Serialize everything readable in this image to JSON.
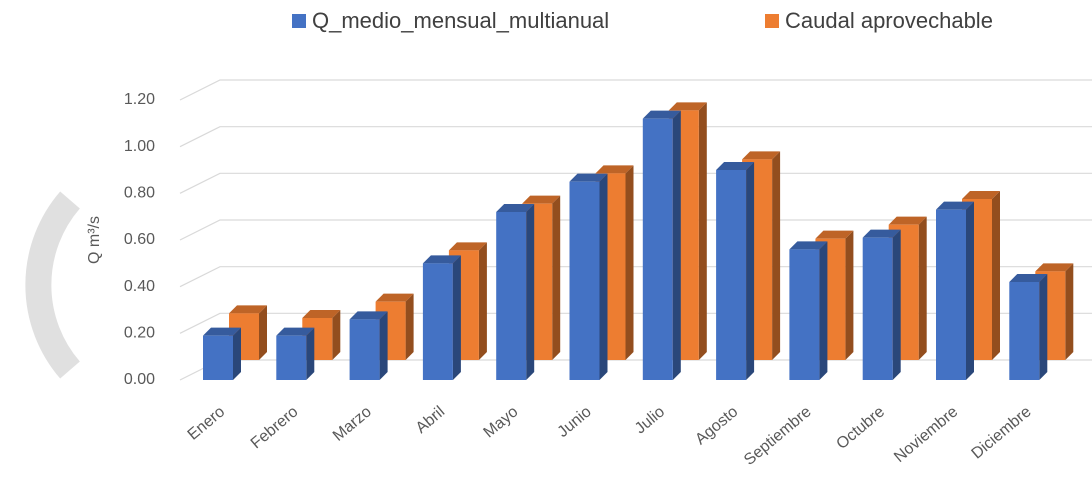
{
  "chart_data": {
    "type": "bar3d",
    "y_label": "Q m³/s",
    "categories": [
      "Enero",
      "Febrero",
      "Marzo",
      "Abril",
      "Mayo",
      "Junio",
      "Julio",
      "Agosto",
      "Septiembre",
      "Octubre",
      "Noviembre",
      "Diciembre"
    ],
    "series": [
      {
        "name": "Q_medio_mensual_multianual",
        "color": "#4472c4",
        "values": [
          0.19,
          0.19,
          0.26,
          0.5,
          0.72,
          0.85,
          1.12,
          0.9,
          0.56,
          0.61,
          0.73,
          0.42
        ]
      },
      {
        "name": "Caudal aprovechable",
        "color": "#ed7d31",
        "values": [
          0.2,
          0.18,
          0.25,
          0.47,
          0.67,
          0.8,
          1.07,
          0.86,
          0.52,
          0.58,
          0.69,
          0.38
        ]
      }
    ],
    "ylim": [
      0,
      1.2
    ],
    "yticks": [
      {
        "value": 0,
        "label": "0.00"
      },
      {
        "value": 0.2,
        "label": "0.20"
      },
      {
        "value": 0.4,
        "label": "0.40"
      },
      {
        "value": 0.6,
        "label": "0.60"
      },
      {
        "value": 0.8,
        "label": "0.80"
      },
      {
        "value": 1.0,
        "label": "1.00"
      },
      {
        "value": 1.2,
        "label": "1.20"
      }
    ],
    "grid": true,
    "legend": "top"
  }
}
